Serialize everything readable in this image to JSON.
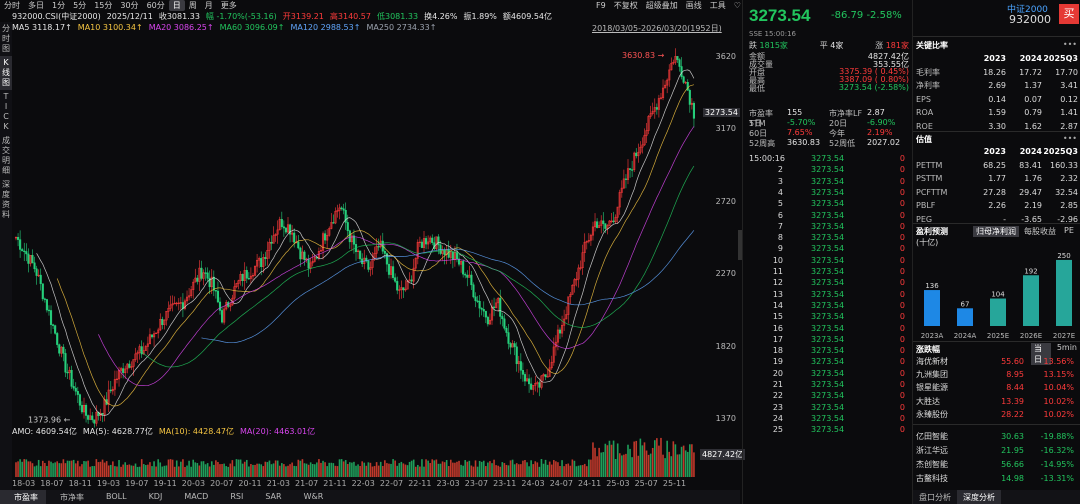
{
  "toolbar": {
    "items": [
      "分时",
      "多日",
      "1分",
      "5分",
      "15分",
      "30分",
      "60分",
      "日",
      "周",
      "月",
      "更多"
    ],
    "active_index": 7,
    "right_items": [
      "F9",
      "不复权",
      "超级叠加",
      "画线",
      "工具",
      "♡"
    ]
  },
  "vtabs": [
    "分时图",
    "K线图",
    "TICK",
    "成交明细",
    "深度资料"
  ],
  "info_line": {
    "code": "932000.CSI(中证2000)",
    "date": "2025/12/11",
    "close": "收3081.33",
    "amp_change": "幅 -1.70%(-53.16)",
    "open": "开3139.21",
    "high": "高3140.57",
    "low": "低3081.33",
    "turnover": "换4.26%",
    "swing": "振1.89%",
    "amount": "额4609.54亿"
  },
  "ma_line": [
    {
      "text": "MA5 3118.17↑",
      "color": "#e6e6e6"
    },
    {
      "text": "MA10 3100.34↑",
      "color": "#f5c542"
    },
    {
      "text": "MA20 3086.25↑",
      "color": "#d946ef"
    },
    {
      "text": "MA60 3096.09↑",
      "color": "#22c55e"
    },
    {
      "text": "MA120 2988.53↑",
      "color": "#60a5fa"
    },
    {
      "text": "MA250 2734.33↑",
      "color": "#9ca3af"
    }
  ],
  "range_label": "2018/03/05-2026/03/20(1952日)",
  "max_label": "3630.83",
  "min_label": "1373.96",
  "current_tag": "3273.54",
  "y_ticks": [
    "3620",
    "3170",
    "2720",
    "2270",
    "1820",
    "1370"
  ],
  "vol_tag": "4827.42亿",
  "amo_line": [
    {
      "text": "AMO: 4609.54亿",
      "color": "#e6e6e6"
    },
    {
      "text": "MA(5): 4628.77亿",
      "color": "#e6e6e6"
    },
    {
      "text": "MA(10): 4428.47亿",
      "color": "#f5c542"
    },
    {
      "text": "MA(20): 4463.01亿",
      "color": "#d946ef"
    }
  ],
  "x_ticks": [
    "18-03",
    "18-07",
    "18-11",
    "19-03",
    "19-07",
    "19-11",
    "20-03",
    "20-07",
    "20-11",
    "21-03",
    "21-07",
    "21-11",
    "22-03",
    "22-07",
    "22-11",
    "23-03",
    "23-07",
    "23-11",
    "24-03",
    "24-07",
    "24-11",
    "25-03",
    "25-07",
    "25-11"
  ],
  "bottom_tabs": [
    "市盈率",
    "市净率",
    "BOLL",
    "KDJ",
    "MACD",
    "RSI",
    "SAR",
    "W&R"
  ],
  "chart_data": {
    "type": "candlestick",
    "ylim": [
      1370,
      3700
    ],
    "x_range": [
      "2018-03",
      "2026-03"
    ],
    "close_path": [
      2500,
      2400,
      2300,
      2100,
      1900,
      1700,
      1550,
      1400,
      1374,
      1450,
      1600,
      1700,
      1750,
      1800,
      1900,
      2000,
      2050,
      2100,
      2200,
      2300,
      2200,
      2000,
      2150,
      2250,
      2300,
      2350,
      2500,
      2600,
      2550,
      2400,
      2300,
      2450,
      2600,
      2700,
      2500,
      2350,
      2300,
      2450,
      2300,
      2150,
      2200,
      2450,
      2500,
      2450,
      2400,
      2350,
      2250,
      2100,
      2000,
      2100,
      1900,
      1750,
      1600,
      1550,
      1650,
      1850,
      2050,
      2250,
      2450,
      2600,
      2550,
      2650,
      2850,
      3000,
      3150,
      3300,
      3450,
      3630,
      3500,
      3274
    ],
    "max": 3630.83,
    "min": 1373.96
  },
  "mid": {
    "price": "3273.54",
    "chg": "-86.79",
    "pct": "-2.58%",
    "sse_time": "SSE 15:00:16",
    "breadth": [
      {
        "label": "跌",
        "value": "1815家",
        "color": "#22c55e"
      },
      {
        "label": "平",
        "value": "4家",
        "color": "#e6e6e6"
      },
      {
        "label": "涨",
        "value": "181家",
        "color": "#ff3b3b"
      }
    ],
    "rows": [
      {
        "k": "金额",
        "v": "4827.42亿",
        "vc": "#e6e6e6"
      },
      {
        "k": "成交量",
        "v": "353.55亿",
        "vc": "#e6e6e6"
      },
      {
        "k": "开盘",
        "v": "3375.39 ( 0.45%)",
        "vc": "#ff3b3b"
      },
      {
        "k": "最高",
        "v": "3387.09 ( 0.80%)",
        "vc": "#ff3b3b"
      },
      {
        "k": "最低",
        "v": "3273.54 (-2.58%)",
        "vc": "#22c55e"
      }
    ],
    "split_rows": [
      [
        {
          "k": "市盈率TTM",
          "v": "155",
          "vc": "#e6e6e6"
        },
        {
          "k": "市净率LF",
          "v": "2.87",
          "vc": "#e6e6e6"
        }
      ],
      [
        {
          "k": "5日",
          "v": "-5.70%",
          "vc": "#22c55e"
        },
        {
          "k": "20日",
          "v": "-6.90%",
          "vc": "#22c55e"
        }
      ],
      [
        {
          "k": "60日",
          "v": "7.65%",
          "vc": "#ff3b3b"
        },
        {
          "k": "今年",
          "v": "2.19%",
          "vc": "#ff3b3b"
        }
      ],
      [
        {
          "k": "52周高",
          "v": "3630.83",
          "vc": "#e6e6e6"
        },
        {
          "k": "52周低",
          "v": "2027.02",
          "vc": "#e6e6e6"
        }
      ]
    ],
    "ticks": [
      {
        "t": "15:00:16",
        "p": "3273.54",
        "v": "0"
      },
      {
        "t": "2",
        "p": "3273.54",
        "v": "0"
      },
      {
        "t": "3",
        "p": "3273.54",
        "v": "0"
      },
      {
        "t": "4",
        "p": "3273.54",
        "v": "0"
      },
      {
        "t": "5",
        "p": "3273.54",
        "v": "0"
      },
      {
        "t": "6",
        "p": "3273.54",
        "v": "0"
      },
      {
        "t": "7",
        "p": "3273.54",
        "v": "0"
      },
      {
        "t": "8",
        "p": "3273.54",
        "v": "0"
      },
      {
        "t": "9",
        "p": "3273.54",
        "v": "0"
      },
      {
        "t": "10",
        "p": "3273.54",
        "v": "0"
      },
      {
        "t": "11",
        "p": "3273.54",
        "v": "0"
      },
      {
        "t": "12",
        "p": "3273.54",
        "v": "0"
      },
      {
        "t": "13",
        "p": "3273.54",
        "v": "0"
      },
      {
        "t": "14",
        "p": "3273.54",
        "v": "0"
      },
      {
        "t": "15",
        "p": "3273.54",
        "v": "0"
      },
      {
        "t": "16",
        "p": "3273.54",
        "v": "0"
      },
      {
        "t": "17",
        "p": "3273.54",
        "v": "0"
      },
      {
        "t": "18",
        "p": "3273.54",
        "v": "0"
      },
      {
        "t": "19",
        "p": "3273.54",
        "v": "0"
      },
      {
        "t": "20",
        "p": "3273.54",
        "v": "0"
      },
      {
        "t": "21",
        "p": "3273.54",
        "v": "0"
      },
      {
        "t": "22",
        "p": "3273.54",
        "v": "0"
      },
      {
        "t": "23",
        "p": "3273.54",
        "v": "0"
      },
      {
        "t": "24",
        "p": "3273.54",
        "v": "0"
      },
      {
        "t": "25",
        "p": "3273.54",
        "v": "0"
      }
    ]
  },
  "right": {
    "index_name": "中证2000",
    "index_code": "932000",
    "buy_label": "买",
    "ratio_title": "关键比率",
    "ratio_headers": [
      "2023",
      "2024",
      "2025Q3"
    ],
    "ratio_rows": [
      {
        "k": "毛利率",
        "v": [
          "18.26",
          "17.72",
          "17.70"
        ]
      },
      {
        "k": "净利率",
        "v": [
          "2.69",
          "1.37",
          "3.41"
        ]
      },
      {
        "k": "EPS",
        "v": [
          "0.14",
          "0.07",
          "0.12"
        ]
      },
      {
        "k": "ROA",
        "v": [
          "1.59",
          "0.79",
          "1.41"
        ]
      },
      {
        "k": "ROE",
        "v": [
          "3.30",
          "1.62",
          "2.87"
        ]
      }
    ],
    "val_title": "估值",
    "val_headers": [
      "2023",
      "2024",
      "2025Q3"
    ],
    "val_rows": [
      {
        "k": "PETTM",
        "v": [
          "68.25",
          "83.41",
          "160.33"
        ]
      },
      {
        "k": "PSTTM",
        "v": [
          "1.77",
          "1.76",
          "2.32"
        ]
      },
      {
        "k": "PCFTTM",
        "v": [
          "27.28",
          "29.47",
          "32.54"
        ]
      },
      {
        "k": "PBLF",
        "v": [
          "2.26",
          "2.19",
          "2.85"
        ]
      },
      {
        "k": "PEG",
        "v": [
          "-",
          "-3.65",
          "-2.96"
        ]
      }
    ],
    "more": "•••",
    "forecast_title": "盈利预测",
    "forecast_unit": "(十亿)",
    "forecast_tabs": [
      "归母净利润",
      "每股收益",
      "PE"
    ],
    "forecast_active": 0,
    "chart_data": {
      "type": "bar",
      "categories": [
        "2023A",
        "2024A",
        "2025E",
        "2026E",
        "2027E"
      ],
      "values": [
        136,
        67,
        104,
        192,
        250
      ],
      "colors": [
        "#1e88e5",
        "#1e88e5",
        "#26a69a",
        "#26a69a",
        "#26a69a"
      ]
    },
    "movers_title": "涨跌幅",
    "mover_tabs": [
      "当日",
      "5min"
    ],
    "gainers": [
      {
        "n": "海优新材",
        "p": "55.60",
        "pct": "13.56%"
      },
      {
        "n": "九洲集团",
        "p": "8.95",
        "pct": "13.15%"
      },
      {
        "n": "银星能源",
        "p": "8.44",
        "pct": "10.04%"
      },
      {
        "n": "大胜达",
        "p": "13.39",
        "pct": "10.02%"
      },
      {
        "n": "永臻股份",
        "p": "28.22",
        "pct": "10.02%"
      }
    ],
    "losers": [
      {
        "n": "亿田智能",
        "p": "30.63",
        "pct": "-19.88%"
      },
      {
        "n": "浙江华远",
        "p": "21.95",
        "pct": "-16.32%"
      },
      {
        "n": "杰创智能",
        "p": "56.66",
        "pct": "-14.95%"
      },
      {
        "n": "古鳌科技",
        "p": "14.98",
        "pct": "-13.31%"
      }
    ],
    "bottom_tabs": [
      "盘口分析",
      "深度分析"
    ],
    "bottom_active": 1
  }
}
